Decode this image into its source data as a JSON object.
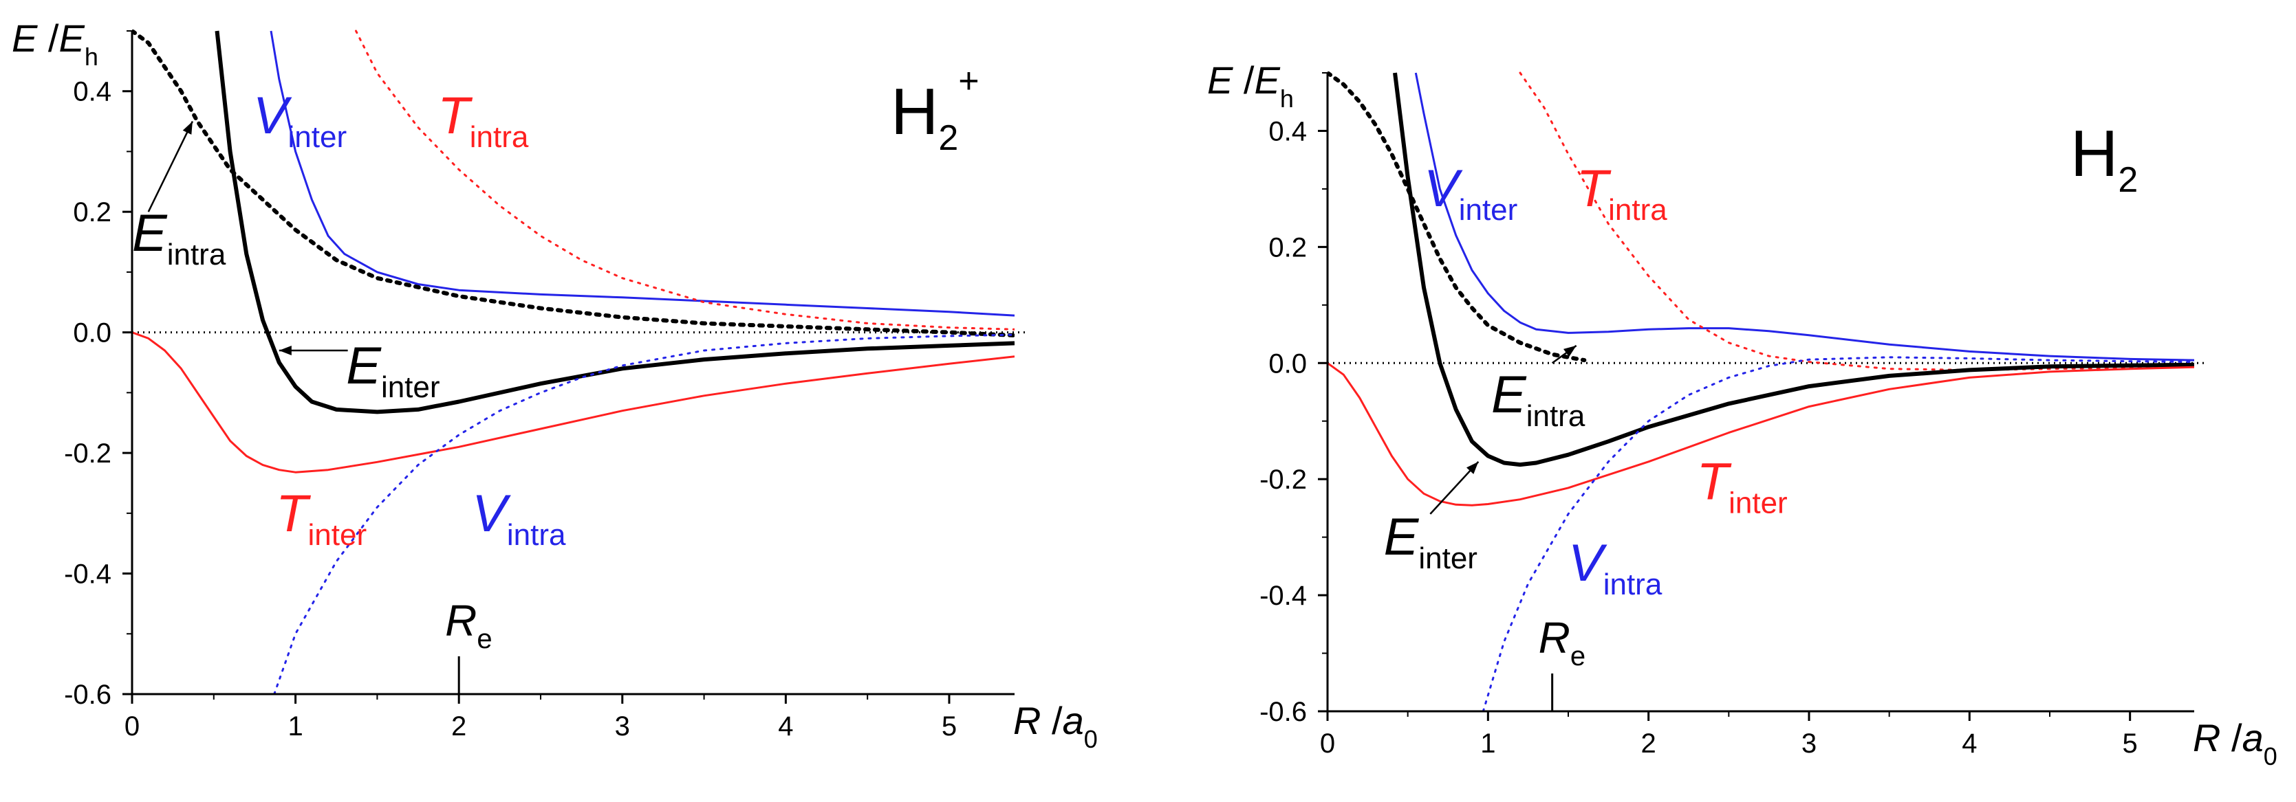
{
  "colors": {
    "red": "#ff2020",
    "blue": "#2424e8",
    "black": "#000000"
  },
  "chart_data": [
    {
      "type": "line",
      "panel": "left",
      "molecule": {
        "main": "H",
        "sub": "2",
        "sup": "+"
      },
      "xlabel": {
        "var": "R",
        "sep": " /",
        "unit": "a",
        "unit_sub": "0"
      },
      "ylabel": {
        "var": "E",
        "sep": " /",
        "unit": "E",
        "unit_sub": "h"
      },
      "xlim": [
        0,
        5.4
      ],
      "ylim": [
        -0.6,
        0.5
      ],
      "xticks": [
        0,
        1,
        2,
        3,
        4,
        5
      ],
      "xtick_labels": [
        "0",
        "1",
        "2",
        "3",
        "4",
        "5"
      ],
      "yticks": [
        -0.6,
        -0.4,
        -0.2,
        0.0,
        0.2,
        0.4
      ],
      "ytick_labels": [
        "-0.6",
        "-0.4",
        "-0.2",
        "0.0",
        "0.2",
        "0.4"
      ],
      "zero_line": true,
      "marker": {
        "x": 2.0,
        "main": "R",
        "sub": "e"
      },
      "series": [
        {
          "name": "V_inter",
          "color": "blue",
          "style": "solid",
          "width": 3,
          "x": [
            0.85,
            0.9,
            1.0,
            1.1,
            1.2,
            1.3,
            1.5,
            1.75,
            2.0,
            2.5,
            3.0,
            3.5,
            4.0,
            4.5,
            5.0,
            5.4
          ],
          "y": [
            0.5,
            0.42,
            0.3,
            0.22,
            0.16,
            0.13,
            0.1,
            0.08,
            0.07,
            0.063,
            0.058,
            0.052,
            0.046,
            0.04,
            0.034,
            0.028
          ]
        },
        {
          "name": "T_intra",
          "color": "red",
          "style": "dotted",
          "width": 3,
          "x": [
            1.37,
            1.5,
            1.75,
            2.0,
            2.25,
            2.5,
            2.75,
            3.0,
            3.25,
            3.5,
            4.0,
            4.5,
            5.0,
            5.4
          ],
          "y": [
            0.5,
            0.43,
            0.34,
            0.27,
            0.21,
            0.16,
            0.12,
            0.09,
            0.07,
            0.05,
            0.03,
            0.015,
            0.008,
            0.005
          ]
        },
        {
          "name": "E_intra",
          "color": "black",
          "style": "dotted",
          "width": 6,
          "x": [
            0.0,
            0.1,
            0.2,
            0.3,
            0.4,
            0.5,
            0.6,
            0.8,
            1.0,
            1.25,
            1.5,
            2.0,
            2.5,
            3.0,
            3.5,
            4.0,
            4.5,
            5.0,
            5.4
          ],
          "y": [
            0.5,
            0.48,
            0.44,
            0.4,
            0.35,
            0.31,
            0.27,
            0.22,
            0.17,
            0.12,
            0.09,
            0.06,
            0.04,
            0.025,
            0.015,
            0.01,
            0.005,
            0.0,
            -0.005
          ]
        },
        {
          "name": "E_inter",
          "color": "black",
          "style": "solid",
          "width": 6,
          "x": [
            0.52,
            0.6,
            0.7,
            0.8,
            0.9,
            1.0,
            1.1,
            1.25,
            1.5,
            1.75,
            2.0,
            2.5,
            3.0,
            3.5,
            4.0,
            4.5,
            5.0,
            5.4
          ],
          "y": [
            0.5,
            0.3,
            0.13,
            0.02,
            -0.05,
            -0.09,
            -0.115,
            -0.128,
            -0.132,
            -0.128,
            -0.115,
            -0.085,
            -0.06,
            -0.045,
            -0.035,
            -0.027,
            -0.022,
            -0.018
          ]
        },
        {
          "name": "T_inter",
          "color": "red",
          "style": "solid",
          "width": 3,
          "x": [
            0.0,
            0.1,
            0.2,
            0.3,
            0.4,
            0.5,
            0.6,
            0.7,
            0.8,
            0.9,
            1.0,
            1.2,
            1.5,
            2.0,
            2.5,
            3.0,
            3.5,
            4.0,
            4.5,
            5.0,
            5.4
          ],
          "y": [
            0.0,
            -0.01,
            -0.03,
            -0.06,
            -0.1,
            -0.14,
            -0.18,
            -0.205,
            -0.22,
            -0.228,
            -0.232,
            -0.228,
            -0.215,
            -0.19,
            -0.16,
            -0.13,
            -0.105,
            -0.085,
            -0.068,
            -0.052,
            -0.04
          ]
        },
        {
          "name": "V_intra",
          "color": "blue",
          "style": "dotted",
          "width": 3,
          "x": [
            0.87,
            1.0,
            1.25,
            1.5,
            1.75,
            2.0,
            2.25,
            2.5,
            2.75,
            3.0,
            3.5,
            4.0,
            4.5,
            5.0,
            5.4
          ],
          "y": [
            -0.6,
            -0.5,
            -0.38,
            -0.29,
            -0.22,
            -0.17,
            -0.13,
            -0.1,
            -0.075,
            -0.055,
            -0.03,
            -0.018,
            -0.01,
            -0.006,
            -0.004
          ]
        }
      ],
      "labels": [
        {
          "name": "label-v-inter",
          "main": "V",
          "sub": "inter",
          "color": "blue",
          "x": 0.74,
          "y": 0.33
        },
        {
          "name": "label-t-intra",
          "main": "T",
          "sub": "intra",
          "color": "red",
          "x": 1.87,
          "y": 0.33
        },
        {
          "name": "label-e-intra",
          "main": "E",
          "sub": "intra",
          "color": "black",
          "x": 0.0,
          "y": 0.135
        },
        {
          "name": "label-e-inter",
          "main": "E",
          "sub": "inter",
          "color": "black",
          "x": 1.31,
          "y": -0.085
        },
        {
          "name": "label-t-inter",
          "main": "T",
          "sub": "inter",
          "color": "red",
          "x": 0.88,
          "y": -0.33
        },
        {
          "name": "label-v-intra",
          "main": "V",
          "sub": "intra",
          "color": "blue",
          "x": 2.08,
          "y": -0.33
        }
      ],
      "arrows": [
        {
          "name": "arrow-e-intra",
          "from": [
            0.1,
            0.2
          ],
          "to": [
            0.37,
            0.35
          ]
        },
        {
          "name": "arrow-e-inter",
          "from": [
            1.32,
            -0.03
          ],
          "to": [
            0.9,
            -0.03
          ]
        }
      ]
    },
    {
      "type": "line",
      "panel": "right",
      "molecule": {
        "main": "H",
        "sub": "2",
        "sup": ""
      },
      "xlabel": {
        "var": "R",
        "sep": " /",
        "unit": "a",
        "unit_sub": "0"
      },
      "ylabel": {
        "var": "E",
        "sep": " /",
        "unit": "E",
        "unit_sub": "h"
      },
      "xlim": [
        0,
        5.4
      ],
      "ylim": [
        -0.6,
        0.5
      ],
      "xticks": [
        0,
        1,
        2,
        3,
        4,
        5
      ],
      "xtick_labels": [
        "0",
        "1",
        "2",
        "3",
        "4",
        "5"
      ],
      "yticks": [
        -0.6,
        -0.4,
        -0.2,
        0.0,
        0.2,
        0.4
      ],
      "ytick_labels": [
        "-0.6",
        "-0.4",
        "-0.2",
        "0.0",
        "0.2",
        "0.4"
      ],
      "zero_line": true,
      "marker": {
        "x": 1.4,
        "main": "R",
        "sub": "e"
      },
      "series": [
        {
          "name": "V_inter",
          "color": "blue",
          "style": "solid",
          "width": 3,
          "x": [
            0.55,
            0.6,
            0.7,
            0.8,
            0.9,
            1.0,
            1.1,
            1.2,
            1.3,
            1.5,
            1.75,
            2.0,
            2.25,
            2.5,
            2.75,
            3.0,
            3.5,
            4.0,
            4.5,
            5.0,
            5.4
          ],
          "y": [
            0.5,
            0.43,
            0.3,
            0.22,
            0.16,
            0.12,
            0.09,
            0.07,
            0.058,
            0.052,
            0.054,
            0.058,
            0.06,
            0.06,
            0.055,
            0.048,
            0.032,
            0.02,
            0.012,
            0.007,
            0.005
          ]
        },
        {
          "name": "T_intra",
          "color": "red",
          "style": "dotted",
          "width": 3,
          "x": [
            1.2,
            1.35,
            1.5,
            1.75,
            2.0,
            2.25,
            2.5,
            2.75,
            3.0,
            3.5,
            4.0,
            4.5,
            5.0,
            5.4
          ],
          "y": [
            0.5,
            0.44,
            0.36,
            0.24,
            0.15,
            0.075,
            0.035,
            0.012,
            0.002,
            -0.01,
            -0.012,
            -0.01,
            -0.008,
            -0.006
          ]
        },
        {
          "name": "E_intra",
          "color": "black",
          "style": "dotted",
          "width": 6,
          "x": [
            0.0,
            0.1,
            0.2,
            0.3,
            0.4,
            0.5,
            0.6,
            0.7,
            0.8,
            0.9,
            1.0,
            1.2,
            1.4,
            1.6
          ],
          "y": [
            0.5,
            0.48,
            0.45,
            0.41,
            0.36,
            0.3,
            0.24,
            0.18,
            0.13,
            0.095,
            0.065,
            0.035,
            0.015,
            0.005
          ]
        },
        {
          "name": "E_inter",
          "color": "black",
          "style": "solid",
          "width": 6,
          "x": [
            0.42,
            0.5,
            0.6,
            0.7,
            0.8,
            0.9,
            1.0,
            1.1,
            1.2,
            1.3,
            1.5,
            1.75,
            2.0,
            2.5,
            3.0,
            3.5,
            4.0,
            4.5,
            5.0,
            5.4
          ],
          "y": [
            0.5,
            0.32,
            0.13,
            0.0,
            -0.08,
            -0.135,
            -0.16,
            -0.172,
            -0.175,
            -0.172,
            -0.158,
            -0.135,
            -0.11,
            -0.07,
            -0.04,
            -0.022,
            -0.012,
            -0.006,
            -0.004,
            -0.003
          ]
        },
        {
          "name": "T_inter",
          "color": "red",
          "style": "solid",
          "width": 3,
          "x": [
            0.0,
            0.1,
            0.2,
            0.3,
            0.4,
            0.5,
            0.6,
            0.7,
            0.8,
            0.9,
            1.0,
            1.2,
            1.5,
            2.0,
            2.5,
            3.0,
            3.5,
            4.0,
            4.5,
            5.0,
            5.4
          ],
          "y": [
            0.0,
            -0.02,
            -0.06,
            -0.11,
            -0.16,
            -0.2,
            -0.225,
            -0.238,
            -0.244,
            -0.245,
            -0.243,
            -0.235,
            -0.215,
            -0.17,
            -0.12,
            -0.075,
            -0.045,
            -0.025,
            -0.015,
            -0.01,
            -0.007
          ]
        },
        {
          "name": "V_intra",
          "color": "blue",
          "style": "dotted",
          "width": 3,
          "x": [
            0.97,
            1.1,
            1.25,
            1.5,
            1.75,
            2.0,
            2.25,
            2.5,
            2.75,
            3.0,
            3.5,
            4.0,
            4.5,
            5.0,
            5.4
          ],
          "y": [
            -0.6,
            -0.48,
            -0.38,
            -0.26,
            -0.17,
            -0.1,
            -0.055,
            -0.025,
            -0.005,
            0.006,
            0.01,
            0.008,
            0.005,
            0.003,
            0.002
          ]
        }
      ],
      "labels": [
        {
          "name": "label-v-inter",
          "main": "V",
          "sub": "inter",
          "color": "blue",
          "x": 0.6,
          "y": 0.27
        },
        {
          "name": "label-t-intra",
          "main": "T",
          "sub": "intra",
          "color": "red",
          "x": 1.55,
          "y": 0.27
        },
        {
          "name": "label-e-intra",
          "main": "E",
          "sub": "intra",
          "color": "black",
          "x": 1.02,
          "y": -0.085
        },
        {
          "name": "label-e-inter",
          "main": "E",
          "sub": "inter",
          "color": "black",
          "x": 0.35,
          "y": -0.33
        },
        {
          "name": "label-t-inter",
          "main": "T",
          "sub": "inter",
          "color": "red",
          "x": 2.3,
          "y": -0.235
        },
        {
          "name": "label-v-intra",
          "main": "V",
          "sub": "intra",
          "color": "blue",
          "x": 1.5,
          "y": -0.375
        }
      ],
      "arrows": [
        {
          "name": "arrow-e-intra",
          "from": [
            1.4,
            0.0
          ],
          "to": [
            1.55,
            0.03
          ]
        },
        {
          "name": "arrow-e-inter",
          "from": [
            0.64,
            -0.26
          ],
          "to": [
            0.94,
            -0.17
          ]
        }
      ]
    }
  ]
}
